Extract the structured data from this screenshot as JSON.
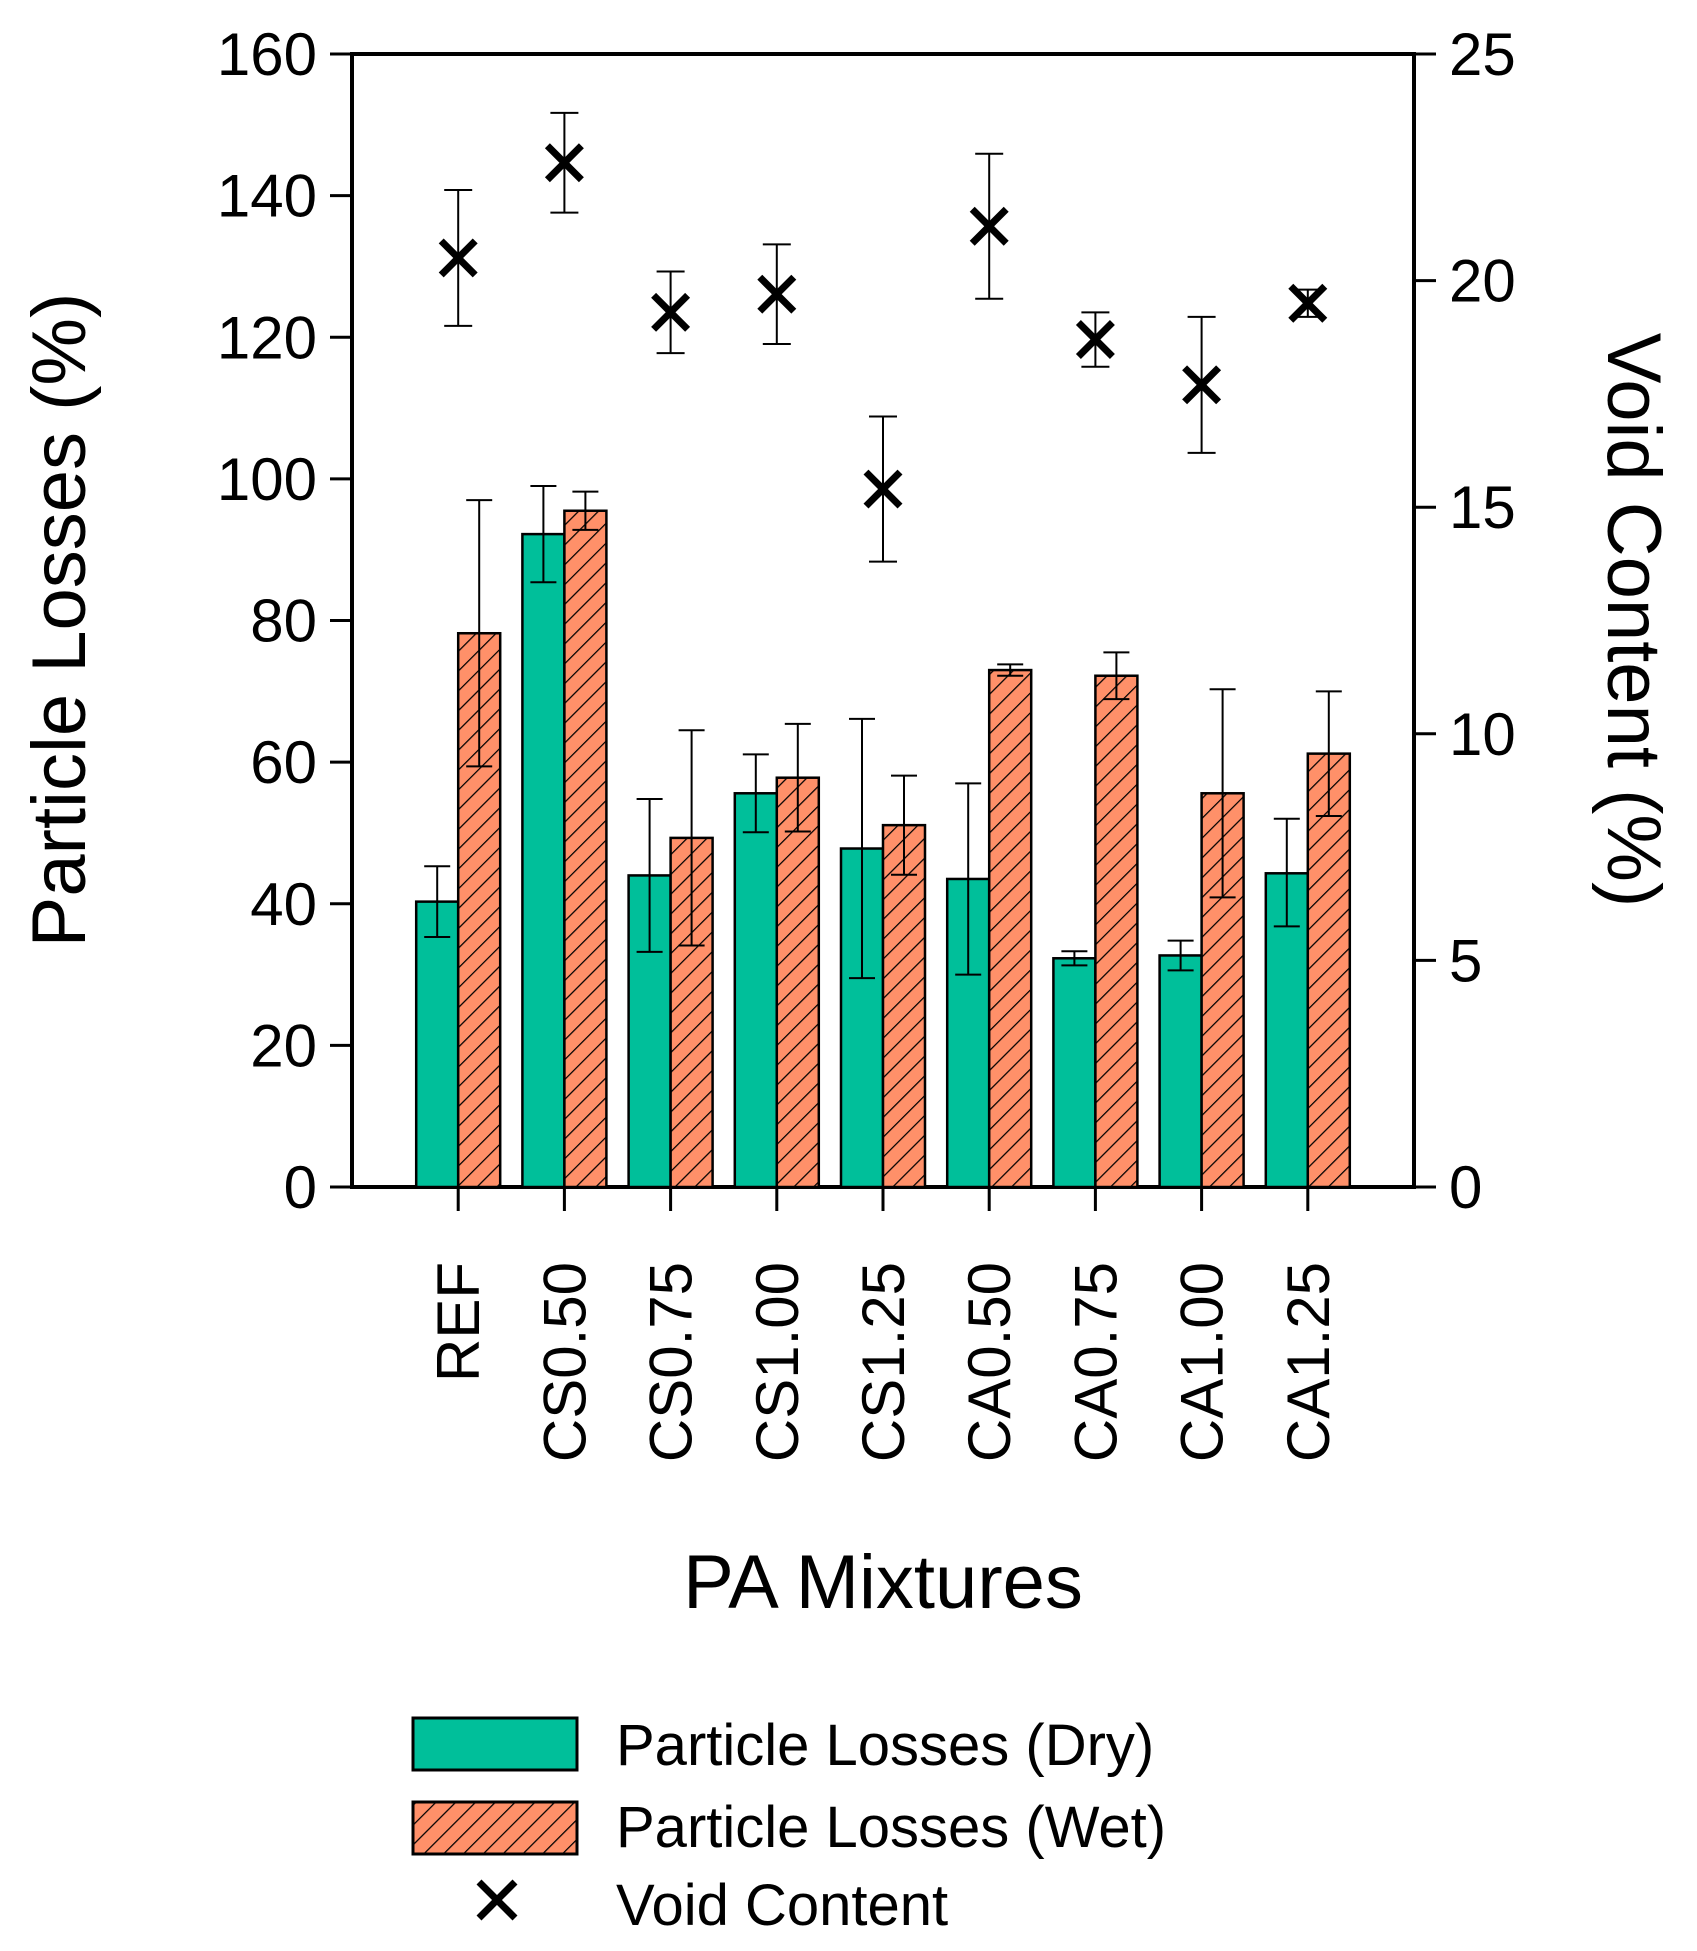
{
  "chart_data": {
    "type": "bar",
    "title": "",
    "xlabel": "PA Mixtures",
    "ylabel": "Particle Losses (%)",
    "y2label": "Void Content (%)",
    "ylim": [
      0,
      160
    ],
    "y2lim": [
      0,
      25
    ],
    "yticks": [
      "0",
      "20",
      "40",
      "60",
      "80",
      "100",
      "120",
      "140",
      "160"
    ],
    "y2ticks": [
      "0",
      "5",
      "10",
      "15",
      "20",
      "25"
    ],
    "categories": [
      "REF",
      "CS0.50",
      "CS0.75",
      "CS1.00",
      "CS1.25",
      "CA0.50",
      "CA0.75",
      "CA1.00",
      "CA1.25"
    ],
    "series": [
      {
        "name": "Particle Losses (Dry)",
        "axis": "left",
        "kind": "bar",
        "color": "#00BF9A",
        "values": [
          40.3,
          92.2,
          44.0,
          55.6,
          47.8,
          43.5,
          32.3,
          32.7,
          44.3
        ],
        "err_low": [
          5.0,
          6.8,
          10.8,
          5.5,
          18.3,
          13.5,
          1.0,
          2.1,
          7.5
        ],
        "err_high": [
          5.0,
          6.8,
          10.8,
          5.5,
          18.3,
          13.5,
          1.0,
          2.1,
          7.7
        ]
      },
      {
        "name": "Particle Losses (Wet)",
        "axis": "left",
        "kind": "bar",
        "color": "#FF9069",
        "pattern": "diagonal-hatch",
        "values": [
          78.2,
          95.5,
          49.3,
          57.8,
          51.1,
          73.0,
          72.2,
          55.6,
          61.2
        ],
        "err_low": [
          18.8,
          2.7,
          15.2,
          7.6,
          7.0,
          0.8,
          3.3,
          14.7,
          8.8
        ],
        "err_high": [
          18.8,
          2.7,
          15.2,
          7.6,
          7.0,
          0.8,
          3.3,
          14.7,
          8.8
        ]
      },
      {
        "name": "Void Content",
        "axis": "right",
        "kind": "scatter",
        "marker": "x",
        "color": "#000000",
        "values": [
          20.5,
          22.6,
          19.3,
          19.7,
          15.4,
          21.2,
          18.7,
          17.7,
          19.5
        ],
        "err_low": [
          1.5,
          1.1,
          0.9,
          1.1,
          1.6,
          1.6,
          0.6,
          1.5,
          0.3
        ],
        "err_high": [
          1.5,
          1.1,
          0.9,
          1.1,
          1.6,
          1.6,
          0.6,
          1.5,
          0.3
        ]
      }
    ],
    "legend_position": "bottom",
    "grid": false
  }
}
